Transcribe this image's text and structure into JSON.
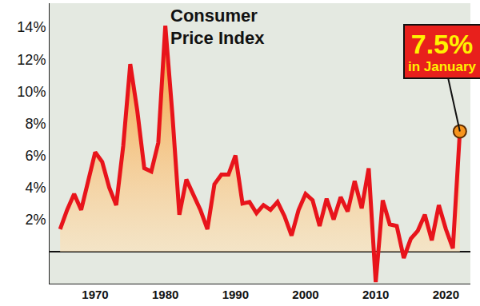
{
  "chart_data": {
    "type": "line",
    "title": "Consumer Price Index",
    "annotation": [
      "7.5%",
      "in January"
    ],
    "x": [
      1965,
      1966,
      1967,
      1968,
      1969,
      1970,
      1971,
      1972,
      1973,
      1974,
      1975,
      1976,
      1977,
      1978,
      1979,
      1980,
      1981,
      1982,
      1983,
      1984,
      1985,
      1986,
      1987,
      1988,
      1989,
      1990,
      1991,
      1992,
      1993,
      1994,
      1995,
      1996,
      1997,
      1998,
      1999,
      2000,
      2001,
      2002,
      2003,
      2004,
      2005,
      2006,
      2007,
      2008,
      2009,
      2010,
      2011,
      2012,
      2013,
      2014,
      2015,
      2016,
      2017,
      2018,
      2019,
      2020,
      2021,
      2022
    ],
    "values": [
      1.4,
      2.6,
      3.6,
      2.6,
      4.4,
      6.2,
      5.6,
      4.0,
      2.9,
      6.6,
      11.7,
      8.8,
      5.2,
      5.0,
      6.8,
      14.1,
      8.6,
      2.3,
      4.5,
      3.6,
      2.6,
      1.4,
      4.2,
      4.8,
      4.8,
      6.0,
      3.0,
      3.1,
      2.4,
      2.9,
      2.6,
      3.1,
      2.2,
      1.0,
      2.6,
      3.6,
      3.2,
      1.6,
      3.3,
      2.0,
      3.4,
      2.5,
      4.4,
      2.7,
      5.2,
      -1.9,
      3.2,
      1.7,
      1.6,
      -0.4,
      0.8,
      1.3,
      2.3,
      0.7,
      2.9,
      1.4,
      0.2,
      7.5
    ],
    "color": "#e8141b",
    "marker": "circle",
    "xlim": [
      1963.5,
      2023.5
    ],
    "xticks": [
      1970,
      1980,
      1990,
      2000,
      2010,
      2020
    ],
    "ylim": [
      -2,
      15.5
    ],
    "yticks": [
      {
        "value": 2,
        "label": "2%"
      },
      {
        "value": 4,
        "label": "4%"
      },
      {
        "value": 6,
        "label": "6%"
      },
      {
        "value": 8,
        "label": "8%"
      },
      {
        "value": 10,
        "label": "10%"
      },
      {
        "value": 12,
        "label": "12%"
      },
      {
        "value": 14,
        "label": "14%"
      }
    ],
    "grid": false
  }
}
